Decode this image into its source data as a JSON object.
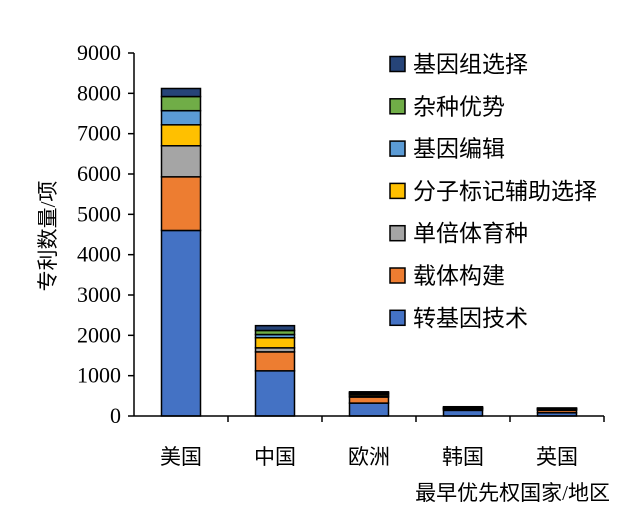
{
  "chart_data": {
    "type": "bar",
    "stacked": true,
    "categories": [
      "美国",
      "中国",
      "欧洲",
      "韩国",
      "英国"
    ],
    "series": [
      {
        "name": "转基因技术",
        "color": "#4472C4",
        "values": [
          4600,
          1120,
          320,
          140,
          80
        ]
      },
      {
        "name": "载体构建",
        "color": "#ED7D31",
        "values": [
          1330,
          470,
          150,
          30,
          60
        ]
      },
      {
        "name": "单倍体育种",
        "color": "#A5A5A5",
        "values": [
          770,
          100,
          30,
          10,
          20
        ]
      },
      {
        "name": "分子标记辅助选择",
        "color": "#FFC000",
        "values": [
          520,
          250,
          40,
          10,
          10
        ]
      },
      {
        "name": "基因编辑",
        "color": "#5B9BD5",
        "values": [
          350,
          80,
          20,
          10,
          10
        ]
      },
      {
        "name": "杂种优势",
        "color": "#70AD47",
        "values": [
          350,
          100,
          20,
          10,
          10
        ]
      },
      {
        "name": "基因组选择",
        "color": "#264478",
        "values": [
          200,
          120,
          20,
          20,
          10
        ]
      }
    ],
    "xlabel": "最早优先权国家/地区",
    "ylabel": "专利数量/项",
    "ylim": [
      0,
      9000
    ],
    "yticks": [
      0,
      1000,
      2000,
      3000,
      4000,
      5000,
      6000,
      7000,
      8000,
      9000
    ],
    "grid": false,
    "legend": "right"
  }
}
